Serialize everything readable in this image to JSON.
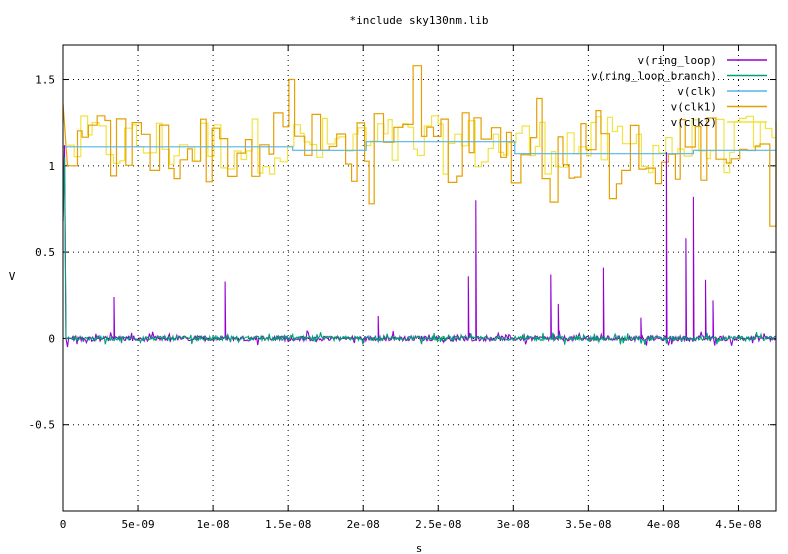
{
  "chart_data": {
    "type": "line",
    "title": "*include sky130nm.lib",
    "xlabel": "s",
    "ylabel": "V",
    "xlim": [
      0,
      4.75e-08
    ],
    "ylim": [
      -1,
      1.7
    ],
    "grid": true,
    "legend_position": "top-right",
    "x_ticks": [
      {
        "value": 0,
        "label": "0"
      },
      {
        "value": 5e-09,
        "label": "5e-09"
      },
      {
        "value": 1e-08,
        "label": "1e-08"
      },
      {
        "value": 1.5e-08,
        "label": "1.5e-08"
      },
      {
        "value": 2e-08,
        "label": "2e-08"
      },
      {
        "value": 2.5e-08,
        "label": "2.5e-08"
      },
      {
        "value": 3e-08,
        "label": "3e-08"
      },
      {
        "value": 3.5e-08,
        "label": "3.5e-08"
      },
      {
        "value": 4e-08,
        "label": "4e-08"
      },
      {
        "value": 4.5e-08,
        "label": "4.5e-08"
      }
    ],
    "y_ticks": [
      {
        "value": 1.5,
        "label": "1.5"
      },
      {
        "value": 1,
        "label": "1"
      },
      {
        "value": 0.5,
        "label": "0.5"
      },
      {
        "value": 0,
        "label": "0"
      },
      {
        "value": -0.5,
        "label": "-0.5"
      }
    ],
    "series": [
      {
        "name": "v(ring_loop)",
        "color": "#9400d3",
        "baseline": 0,
        "start_spike": [
          [
            0,
            0.68
          ],
          [
            1e-10,
            1.12
          ],
          [
            2e-10,
            0
          ],
          [
            3e-10,
            -0.05
          ]
        ],
        "spikes": [
          {
            "x": 3.4e-09,
            "y": 0.24
          },
          {
            "x": 1.08e-08,
            "y": 0.33
          },
          {
            "x": 2.1e-08,
            "y": 0.13
          },
          {
            "x": 2.7e-08,
            "y": 0.36
          },
          {
            "x": 2.75e-08,
            "y": 0.8
          },
          {
            "x": 3.25e-08,
            "y": 0.37
          },
          {
            "x": 3.3e-08,
            "y": 0.2
          },
          {
            "x": 3.6e-08,
            "y": 0.41
          },
          {
            "x": 3.85e-08,
            "y": 0.12
          },
          {
            "x": 4.02e-08,
            "y": 1.08
          },
          {
            "x": 4.15e-08,
            "y": 0.58
          },
          {
            "x": 4.2e-08,
            "y": 0.82
          },
          {
            "x": 4.28e-08,
            "y": 0.34
          },
          {
            "x": 4.33e-08,
            "y": 0.22
          }
        ]
      },
      {
        "name": "v(ring_loop_branch)",
        "color": "#009e73",
        "baseline": 0,
        "start_spike": [
          [
            0,
            0.68
          ],
          [
            1e-10,
            1.05
          ],
          [
            2e-10,
            0
          ],
          [
            3e-10,
            0
          ]
        ],
        "spikes": []
      },
      {
        "name": "v(clk)",
        "color": "#56b4e9",
        "points": [
          [
            0,
            1.11
          ],
          [
            1.53e-08,
            1.11
          ],
          [
            1.53e-08,
            1.09
          ],
          [
            2.02e-08,
            1.09
          ],
          [
            2.02e-08,
            1.14
          ],
          [
            3.01e-08,
            1.14
          ],
          [
            3.01e-08,
            1.07
          ],
          [
            4.2e-08,
            1.07
          ],
          [
            4.2e-08,
            1.09
          ],
          [
            4.75e-08,
            1.09
          ]
        ]
      },
      {
        "name": "v(clk1)",
        "color": "#e69f00",
        "mean": 1.1,
        "start": [
          [
            0,
            1.36
          ],
          [
            3e-10,
            1.0
          ]
        ],
        "highlights": [
          {
            "x": 1.47e-08,
            "y": 1.5
          },
          {
            "x": 2.32e-08,
            "y": 1.58
          },
          {
            "x": 3.13e-08,
            "y": 1.39
          },
          {
            "x": 3.55e-08,
            "y": 1.32
          },
          {
            "x": 3.23e-08,
            "y": 0.79
          },
          {
            "x": 3.63e-08,
            "y": 0.81
          },
          {
            "x": 4.68e-08,
            "y": 0.65
          },
          {
            "x": 2.02e-08,
            "y": 0.78
          }
        ]
      },
      {
        "name": "v(clk2)",
        "color": "#f0e442",
        "mean": 1.12
      }
    ]
  }
}
